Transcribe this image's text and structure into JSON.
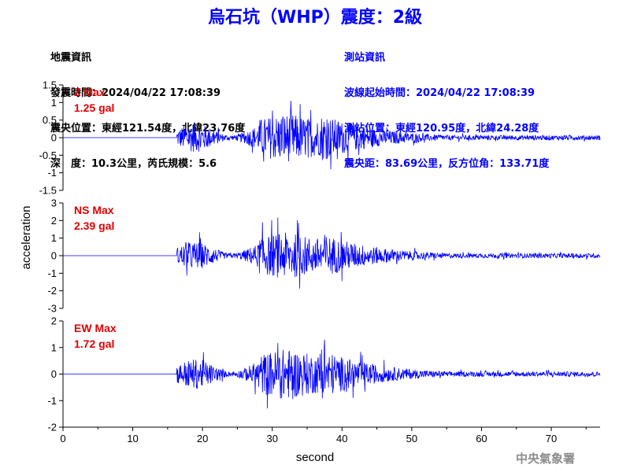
{
  "title": "烏石坑（WHP）震度：2級",
  "info_left": {
    "heading": "地震資訊",
    "time": "發震時間：2024/04/22 17:08:39",
    "epicenter": "震央位置：東經121.54度，北緯23.76度",
    "depth": "深　度：10.3公里，芮氏規模：5.6"
  },
  "info_right": {
    "heading": "測站資訊",
    "wave_start": "波線起始時間：2024/04/22 17:08:39",
    "station": "測站位置：東經120.95度，北緯24.28度",
    "distance": "震央距：83.69公里，反方位角：133.71度"
  },
  "footer_mark": "中央氣象署",
  "chart_data": {
    "type": "line",
    "xlabel": "second",
    "ylabel": "acceleration",
    "xlim": [
      0,
      77
    ],
    "xticks": [
      0,
      10,
      20,
      30,
      40,
      50,
      60,
      70
    ],
    "line_color": "#0000ff",
    "label_color": "#e00000",
    "panels": [
      {
        "name": "Z",
        "max_label": "Z Max",
        "max_value": "1.25 gal",
        "peak": 1.25,
        "ylim": [
          -1.5,
          1.5
        ],
        "yticks": [
          -1.5,
          -1,
          -0.5,
          0,
          0.5,
          1,
          1.5
        ],
        "yticklabels": [
          "-1.5",
          "-1",
          "-0.5",
          "0",
          "0.5",
          "1",
          "1.5"
        ]
      },
      {
        "name": "NS",
        "max_label": "NS Max",
        "max_value": "2.39 gal",
        "peak": 2.39,
        "ylim": [
          -3,
          3
        ],
        "yticks": [
          -3,
          -2,
          -1,
          0,
          1,
          2,
          3
        ],
        "yticklabels": [
          "-3",
          "-2",
          "-1",
          "0",
          "1",
          "2",
          "3"
        ]
      },
      {
        "name": "EW",
        "max_label": "EW Max",
        "max_value": "1.72 gal",
        "peak": 1.72,
        "ylim": [
          -2,
          2
        ],
        "yticks": [
          -2,
          -1,
          0,
          1,
          2
        ],
        "yticklabels": [
          "-2",
          "-1",
          "0",
          "1",
          "2"
        ]
      }
    ]
  }
}
